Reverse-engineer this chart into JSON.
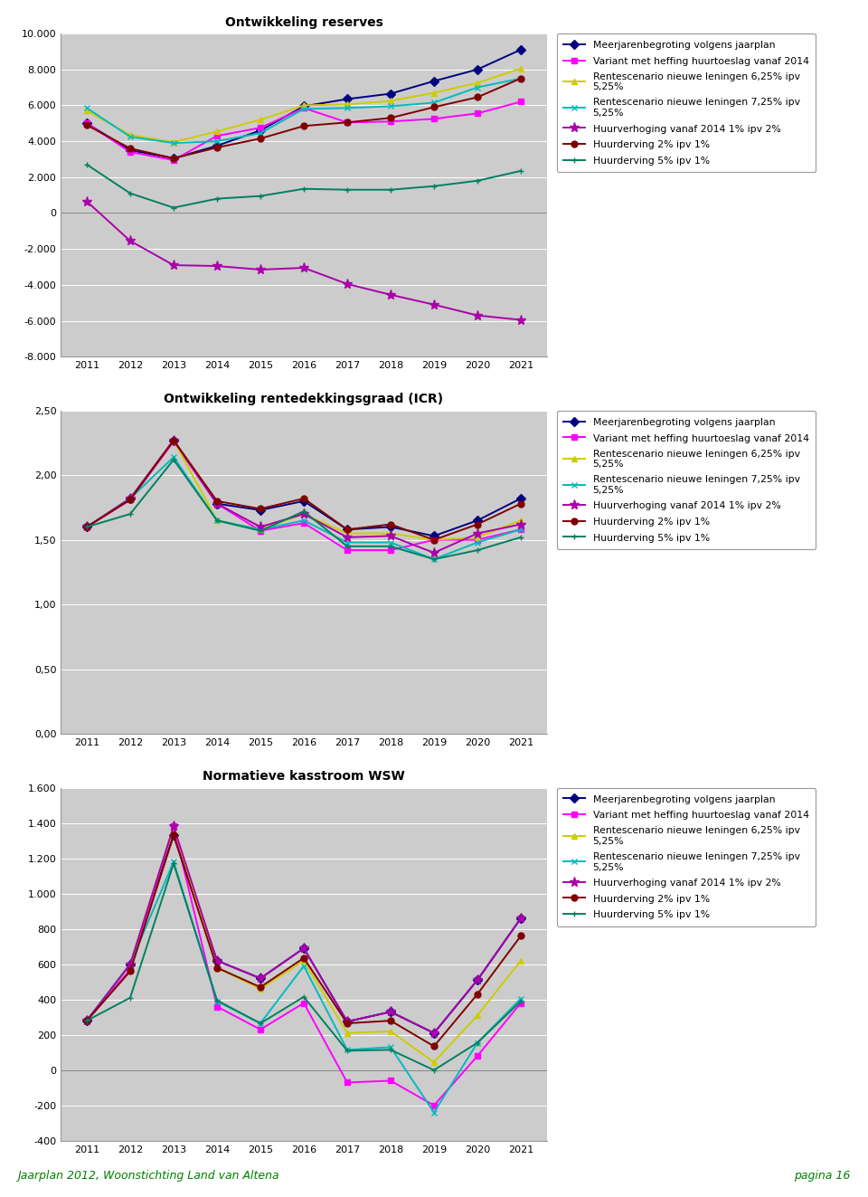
{
  "years": [
    2011,
    2012,
    2013,
    2014,
    2015,
    2016,
    2017,
    2018,
    2019,
    2020,
    2021
  ],
  "chart1": {
    "title": "Ontwikkeling reserves",
    "ylim": [
      -8000,
      10000
    ],
    "yticks": [
      -8000,
      -6000,
      -4000,
      -2000,
      0,
      2000,
      4000,
      6000,
      8000,
      10000
    ],
    "series": {
      "meerjarenb": [
        5000,
        3500,
        3050,
        3750,
        4600,
        5950,
        6350,
        6650,
        7350,
        8000,
        9100
      ],
      "variant_heff": [
        5000,
        3400,
        2950,
        4300,
        4750,
        5850,
        5050,
        5100,
        5250,
        5550,
        6200
      ],
      "rente_625": [
        5700,
        4350,
        3950,
        4550,
        5200,
        6000,
        6050,
        6250,
        6700,
        7250,
        8050
      ],
      "rente_725": [
        5850,
        4250,
        3900,
        4000,
        4450,
        5800,
        5850,
        5950,
        6150,
        7000,
        7500
      ],
      "huurverh": [
        650,
        -1550,
        -2900,
        -2950,
        -3150,
        -3050,
        -3950,
        -4550,
        -5100,
        -5700,
        -5950
      ],
      "huurderv2": [
        4900,
        3600,
        3050,
        3650,
        4150,
        4850,
        5050,
        5300,
        5900,
        6450,
        7500
      ],
      "huurderv5": [
        2700,
        1100,
        300,
        800,
        950,
        1350,
        1300,
        1300,
        1500,
        1800,
        2350
      ]
    }
  },
  "chart2": {
    "title": "Ontwikkeling rentedekkingsgraad (ICR)",
    "ylim": [
      0.0,
      2.5
    ],
    "yticks": [
      0.0,
      0.5,
      1.0,
      1.5,
      2.0,
      2.5
    ],
    "series": {
      "meerjarenb": [
        1.6,
        1.82,
        2.27,
        1.78,
        1.73,
        1.8,
        1.58,
        1.6,
        1.53,
        1.65,
        1.82
      ],
      "variant_heff": [
        1.6,
        1.81,
        2.26,
        1.78,
        1.57,
        1.63,
        1.42,
        1.42,
        1.5,
        1.5,
        1.58
      ],
      "rente_625": [
        1.6,
        1.82,
        2.27,
        1.65,
        1.58,
        1.7,
        1.55,
        1.55,
        1.5,
        1.52,
        1.65
      ],
      "rente_725": [
        1.6,
        1.82,
        2.14,
        1.65,
        1.58,
        1.65,
        1.48,
        1.48,
        1.35,
        1.48,
        1.58
      ],
      "huurverh": [
        1.6,
        1.82,
        2.27,
        1.78,
        1.6,
        1.7,
        1.52,
        1.53,
        1.4,
        1.55,
        1.62
      ],
      "huurderv2": [
        1.6,
        1.81,
        2.27,
        1.8,
        1.74,
        1.82,
        1.58,
        1.62,
        1.5,
        1.62,
        1.78
      ],
      "huurderv5": [
        1.6,
        1.7,
        2.12,
        1.65,
        1.57,
        1.72,
        1.45,
        1.45,
        1.35,
        1.42,
        1.52
      ]
    }
  },
  "chart3": {
    "title": "Normatieve kasstroom WSW",
    "ylim": [
      -400,
      1600
    ],
    "yticks": [
      -400,
      -200,
      0,
      200,
      400,
      600,
      800,
      1000,
      1200,
      1400,
      1600
    ],
    "series": {
      "meerjarenb": [
        280,
        600,
        1330,
        620,
        520,
        690,
        275,
        330,
        210,
        510,
        860
      ],
      "variant_heff": [
        280,
        570,
        1380,
        360,
        230,
        380,
        -70,
        -60,
        -200,
        80,
        380
      ],
      "rente_625": [
        280,
        600,
        1380,
        580,
        460,
        620,
        210,
        220,
        45,
        310,
        620
      ],
      "rente_725": [
        280,
        600,
        1180,
        390,
        265,
        590,
        115,
        130,
        -240,
        155,
        405
      ],
      "huurverh": [
        280,
        600,
        1380,
        620,
        520,
        690,
        275,
        330,
        210,
        510,
        860
      ],
      "huurderv2": [
        280,
        560,
        1330,
        580,
        470,
        635,
        265,
        280,
        135,
        430,
        760
      ],
      "huurderv5": [
        280,
        410,
        1170,
        395,
        265,
        415,
        110,
        115,
        0,
        155,
        390
      ]
    }
  },
  "colors": {
    "meerjarenb": "#000080",
    "variant_heff": "#FF00FF",
    "rente_625": "#CCCC00",
    "rente_725": "#00BBBB",
    "huurverh": "#AA00AA",
    "huurderv2": "#800000",
    "huurderv5": "#008060"
  },
  "markers": {
    "meerjarenb": "D",
    "variant_heff": "s",
    "rente_625": "^",
    "rente_725": "x",
    "huurverh": "*",
    "huurderv2": "o",
    "huurderv5": "+"
  },
  "legend_labels": {
    "meerjarenb": "Meerjarenbegroting volgens jaarplan",
    "variant_heff": "Variant met heffing huurtoeslag vanaf 2014",
    "rente_625": "Rentescenario nieuwe leningen 6,25% ipv\n5,25%",
    "rente_725": "Rentescenario nieuwe leningen 7,25% ipv\n5,25%",
    "huurverh": "Huurverhoging vanaf 2014 1% ipv 2%",
    "huurderv2": "Huurderving 2% ipv 1%",
    "huurderv5": "Huurderving 5% ipv 1%"
  },
  "footer_left": "Jaarplan 2012, Woonstichting Land van Altena",
  "footer_right": "pagina 16"
}
